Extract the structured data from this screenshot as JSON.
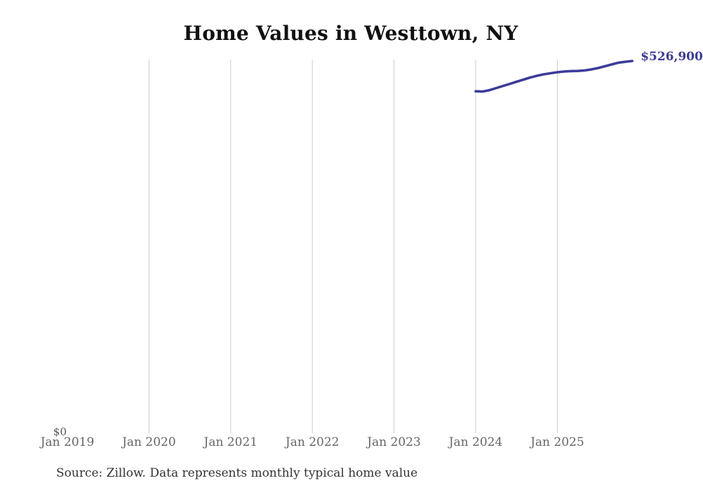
{
  "title": "Home Values in Westtown, NY",
  "source_note": "Source: Zillow. Data represents monthly typical home value",
  "end_value_label": "$526,900",
  "y_axis": {
    "zero_label": "$0"
  },
  "colors": {
    "background": "#ffffff",
    "line": "#3d3b99",
    "end_label": "#3d3b99",
    "gridline": "#cccccc",
    "tick_label": "#666666",
    "title": "#111111",
    "source": "#333333"
  },
  "chart_data": {
    "type": "line",
    "title": "Home Values in Westtown, NY",
    "xlabel": "",
    "ylabel": "",
    "x_tick_labels": [
      "Jan 2019",
      "Jan 2020",
      "Jan 2021",
      "Jan 2022",
      "Jan 2023",
      "Jan 2024",
      "Jan 2025"
    ],
    "y_axis": {
      "min": 0,
      "min_label": "$0"
    },
    "grid": "vertical-only",
    "legend": "none",
    "annotation_last_value": "$526,900",
    "series": [
      {
        "name": "Monthly typical home value",
        "x": [
          "Jan 2024",
          "Feb 2024",
          "Mar 2024",
          "Apr 2024",
          "May 2024",
          "Jun 2024",
          "Jul 2024",
          "Aug 2024",
          "Sep 2024",
          "Oct 2024",
          "Nov 2024",
          "Dec 2024",
          "Jan 2025",
          "Feb 2025",
          "Mar 2025",
          "Apr 2025",
          "May 2025",
          "Jun 2025",
          "Jul 2025",
          "Aug 2025",
          "Sep 2025",
          "Oct 2025",
          "Nov 2025",
          "Dec 2025"
        ],
        "values": [
          484000,
          483600,
          485500,
          488500,
          491500,
          494500,
          497500,
          500500,
          503500,
          506000,
          508000,
          509500,
          511000,
          512000,
          512600,
          512800,
          513500,
          515000,
          517000,
          519500,
          522000,
          524500,
          525800,
          526900
        ]
      }
    ]
  }
}
